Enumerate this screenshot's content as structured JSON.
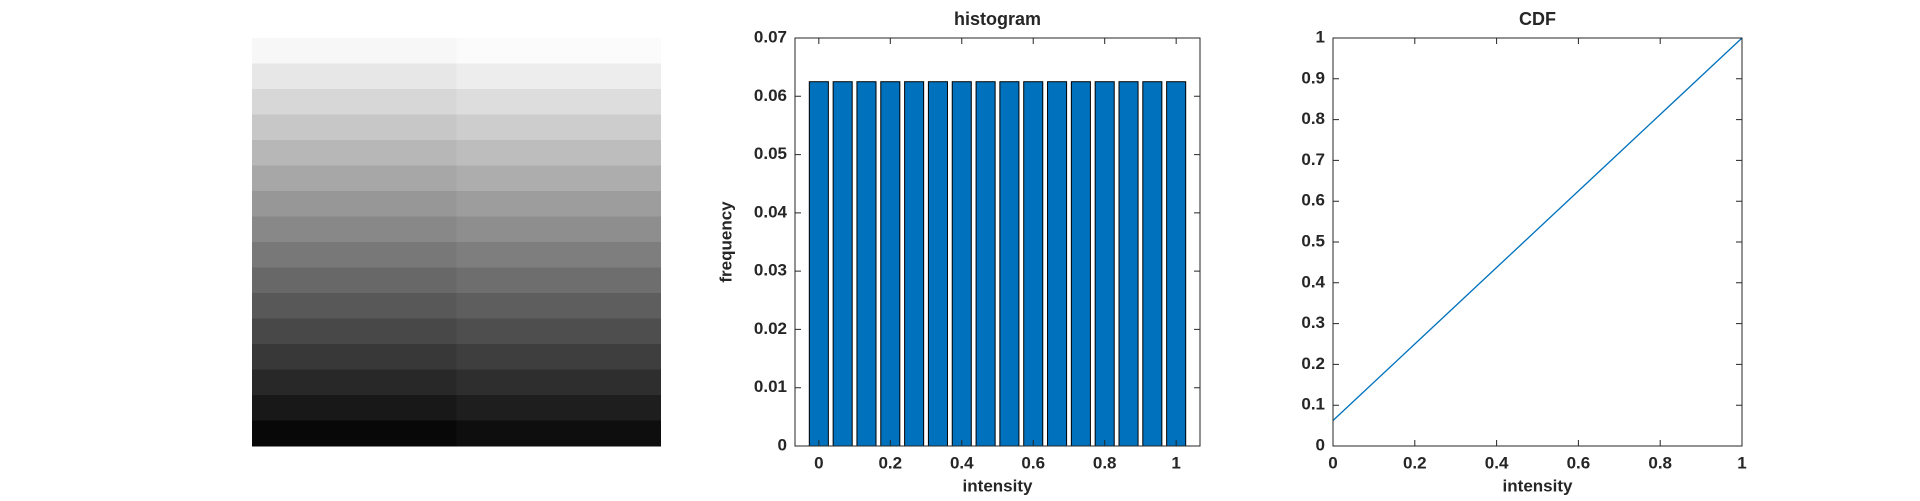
{
  "chart_data": [
    {
      "type": "bar",
      "title": "histogram",
      "x_label": "intensity",
      "y_label": "frequency",
      "x": [
        0,
        0.0667,
        0.1333,
        0.2,
        0.2667,
        0.3333,
        0.4,
        0.4667,
        0.5333,
        0.6,
        0.6667,
        0.7333,
        0.8,
        0.8667,
        0.9333,
        1
      ],
      "values": [
        0.0625,
        0.0625,
        0.0625,
        0.0625,
        0.0625,
        0.0625,
        0.0625,
        0.0625,
        0.0625,
        0.0625,
        0.0625,
        0.0625,
        0.0625,
        0.0625,
        0.0625,
        0.0625
      ],
      "color": "#0072bd",
      "xlim": [
        -0.0667,
        1.0667
      ],
      "xticks": [
        0,
        0.2,
        0.4,
        0.6,
        0.8,
        1
      ],
      "ylim": [
        0,
        0.07
      ],
      "yticks": [
        0,
        0.01,
        0.02,
        0.03,
        0.04,
        0.05,
        0.06,
        0.07
      ]
    },
    {
      "type": "line",
      "title": "CDF",
      "x_label": "intensity",
      "x": [
        0,
        0.0667,
        0.1333,
        0.2,
        0.2667,
        0.3333,
        0.4,
        0.4667,
        0.5333,
        0.6,
        0.6667,
        0.7333,
        0.8,
        0.8667,
        0.9333,
        1
      ],
      "values": [
        0.0625,
        0.125,
        0.1875,
        0.25,
        0.3125,
        0.375,
        0.4375,
        0.5,
        0.5625,
        0.625,
        0.6875,
        0.75,
        0.8125,
        0.875,
        0.9375,
        1
      ],
      "color": "#0072bd",
      "xlim": [
        0,
        1
      ],
      "xticks": [
        0,
        0.2,
        0.4,
        0.6,
        0.8,
        1
      ],
      "ylim": [
        0,
        1
      ],
      "yticks": [
        0,
        0.1,
        0.2,
        0.3,
        0.4,
        0.5,
        0.6,
        0.7,
        0.8,
        0.9,
        1
      ]
    }
  ]
}
